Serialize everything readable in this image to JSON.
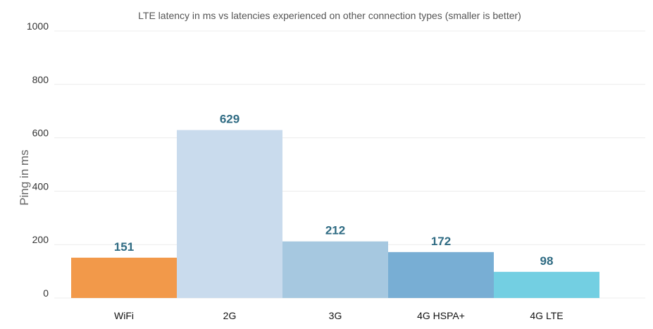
{
  "chart_data": {
    "type": "bar",
    "title": "LTE latency in ms vs latencies experienced on other connection types (smaller is better)",
    "xlabel": "",
    "ylabel": "Ping in ms",
    "categories": [
      "WiFi",
      "2G",
      "3G",
      "4G HSPA+",
      "4G LTE"
    ],
    "values": [
      151,
      629,
      212,
      172,
      98
    ],
    "value_labels": [
      "151",
      "629",
      "212",
      "172",
      "98"
    ],
    "bar_colors": [
      "#f2994a",
      "#c9dbed",
      "#a6c8e0",
      "#78aed4",
      "#73cfe2"
    ],
    "label_color": "#2f6b83",
    "ylim": [
      0,
      1000
    ],
    "yticks": [
      0,
      200,
      400,
      600,
      800,
      1000
    ],
    "ytick_labels": [
      "0",
      "200",
      "400",
      "600",
      "800",
      "1000"
    ],
    "grid": true,
    "legend": "none"
  }
}
